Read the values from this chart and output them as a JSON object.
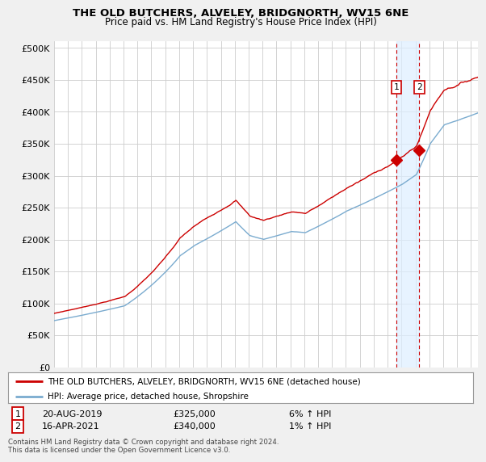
{
  "title": "THE OLD BUTCHERS, ALVELEY, BRIDGNORTH, WV15 6NE",
  "subtitle": "Price paid vs. HM Land Registry's House Price Index (HPI)",
  "legend_line1": "THE OLD BUTCHERS, ALVELEY, BRIDGNORTH, WV15 6NE (detached house)",
  "legend_line2": "HPI: Average price, detached house, Shropshire",
  "note1_date": "20-AUG-2019",
  "note1_price": "£325,000",
  "note1_hpi": "6% ↑ HPI",
  "note2_date": "16-APR-2021",
  "note2_price": "£340,000",
  "note2_hpi": "1% ↑ HPI",
  "footer": "Contains HM Land Registry data © Crown copyright and database right 2024.\nThis data is licensed under the Open Government Licence v3.0.",
  "red_color": "#cc0000",
  "blue_color": "#7aabcf",
  "shade_color": "#ddeeff",
  "annotation_color": "#cc0000",
  "sale1_x": 2019.62,
  "sale1_y": 325000,
  "sale2_x": 2021.28,
  "sale2_y": 340000,
  "ylim_min": 0,
  "ylim_max": 510000,
  "yticks": [
    0,
    50000,
    100000,
    150000,
    200000,
    250000,
    300000,
    350000,
    400000,
    450000,
    500000
  ],
  "ytick_labels": [
    "£0",
    "£50K",
    "£100K",
    "£150K",
    "£200K",
    "£250K",
    "£300K",
    "£350K",
    "£400K",
    "£450K",
    "£500K"
  ],
  "bg_color": "#f0f0f0",
  "plot_bg": "#ffffff",
  "grid_color": "#cccccc",
  "xlim_min": 1995.0,
  "xlim_max": 2025.5
}
